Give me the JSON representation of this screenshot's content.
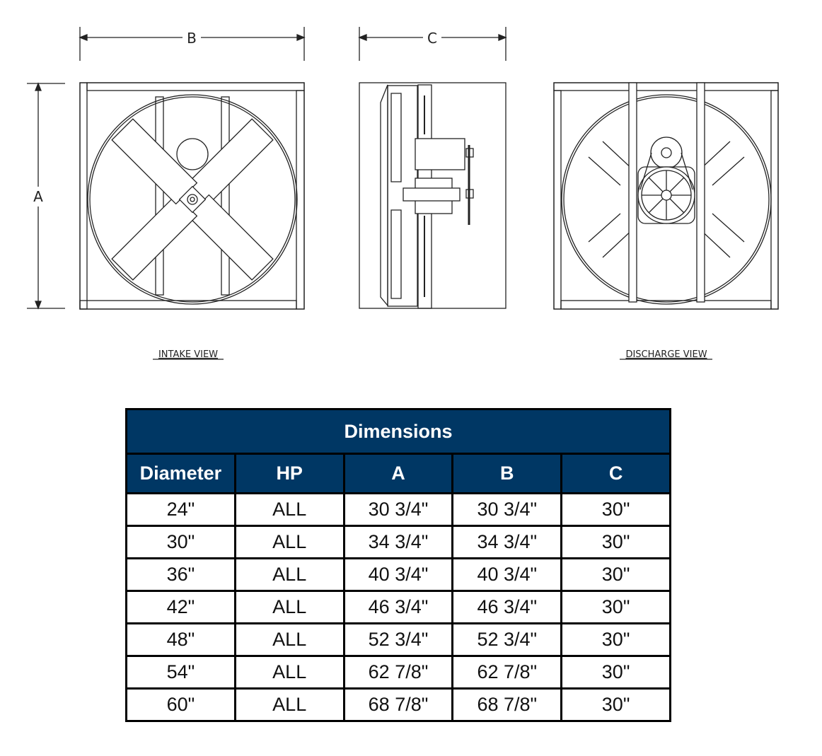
{
  "drawing": {
    "dimension_labels": {
      "a": "A",
      "b": "B",
      "c": "C"
    },
    "views": {
      "intake": "INTAKE VIEW",
      "discharge": "DISCHARGE VIEW"
    }
  },
  "table": {
    "title": "Dimensions",
    "header_color": "#003764",
    "columns": [
      "Diameter",
      "HP",
      "A",
      "B",
      "C"
    ],
    "rows": [
      [
        "24\"",
        "ALL",
        "30 3/4\"",
        "30 3/4\"",
        "30\""
      ],
      [
        "30\"",
        "ALL",
        "34 3/4\"",
        "34 3/4\"",
        "30\""
      ],
      [
        "36\"",
        "ALL",
        "40 3/4\"",
        "40 3/4\"",
        "30\""
      ],
      [
        "42\"",
        "ALL",
        "46 3/4\"",
        "46 3/4\"",
        "30\""
      ],
      [
        "48\"",
        "ALL",
        "52 3/4\"",
        "52 3/4\"",
        "30\""
      ],
      [
        "54\"",
        "ALL",
        "62 7/8\"",
        "62 7/8\"",
        "30\""
      ],
      [
        "60\"",
        "ALL",
        "68 7/8\"",
        "68 7/8\"",
        "30\""
      ]
    ]
  }
}
